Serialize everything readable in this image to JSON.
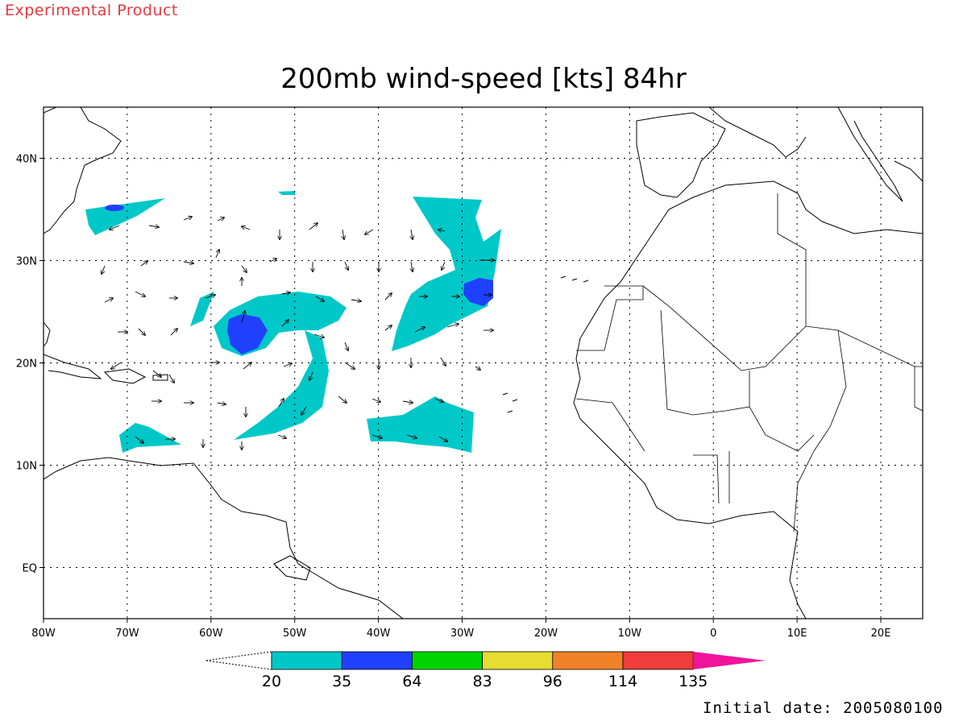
{
  "header": {
    "product_label": "Experimental Product",
    "title": "200mb wind-speed [kts] 84hr"
  },
  "footer": {
    "initial_date": "Initial date: 2005080100"
  },
  "map": {
    "lon_ticks": [
      "80W",
      "70W",
      "60W",
      "50W",
      "40W",
      "30W",
      "20W",
      "10W",
      "0",
      "10E",
      "20E"
    ],
    "lat_ticks": [
      "40N",
      "30N",
      "20N",
      "10N",
      "EQ"
    ],
    "lon_range": [
      -80,
      25
    ],
    "lat_range": [
      -5,
      45
    ]
  },
  "colorbar": {
    "labels": [
      "20",
      "35",
      "64",
      "83",
      "96",
      "114",
      "135"
    ],
    "colors": [
      "#00c8c8",
      "#2040ff",
      "#00d400",
      "#e6dc32",
      "#f08228",
      "#f03c3c",
      "#f0149a"
    ]
  },
  "chart_data": {
    "type": "heatmap",
    "title": "200mb wind-speed [kts] 84hr",
    "field": "wind-speed",
    "units": "kts",
    "contour_levels": [
      20,
      35,
      64,
      83,
      96,
      114,
      135
    ],
    "level_colors": [
      "#00c8c8",
      "#2040ff",
      "#00d400",
      "#e6dc32",
      "#f08228",
      "#f03c3c",
      "#f0149a"
    ],
    "x_range": [
      "80W",
      "25E"
    ],
    "y_range": [
      "5S",
      "45N"
    ],
    "grid": true
  }
}
